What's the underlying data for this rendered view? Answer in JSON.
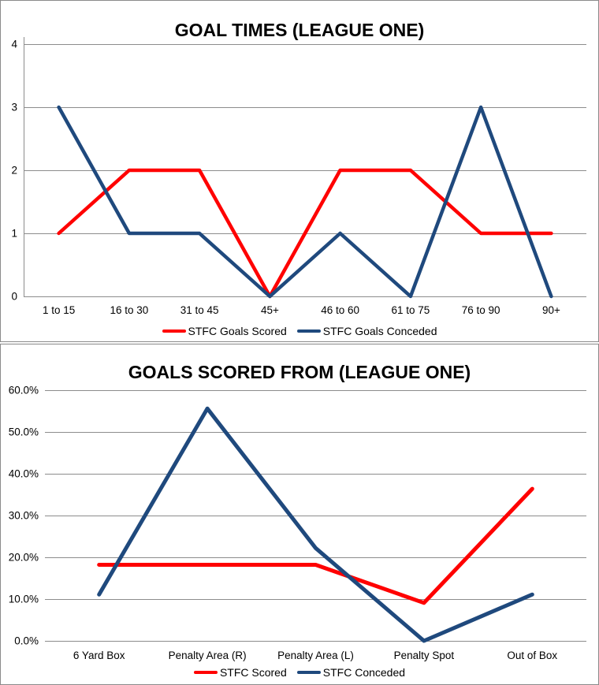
{
  "chart_data": [
    {
      "type": "line",
      "title": "GOAL TIMES (LEAGUE ONE)",
      "categories": [
        "1 to 15",
        "16 to 30",
        "31 to 45",
        "45+",
        "46 to 60",
        "61 to 75",
        "76 to 90",
        "90+"
      ],
      "series": [
        {
          "name": "STFC Goals Scored",
          "color": "#FF0000",
          "values": [
            1,
            2,
            2,
            0,
            2,
            2,
            1,
            1
          ]
        },
        {
          "name": "STFC Goals Conceded",
          "color": "#1F497D",
          "values": [
            3,
            1,
            1,
            0,
            1,
            0,
            3,
            0
          ]
        }
      ],
      "ylim": [
        0,
        4
      ],
      "yticks": [
        0,
        1,
        2,
        3,
        4
      ],
      "ytick_labels": [
        "0",
        "1",
        "2",
        "3",
        "4"
      ],
      "xlabel": "",
      "ylabel": "",
      "grid": "horizontal",
      "gridline_color": "#8C8C8C",
      "legend_position": "bottom"
    },
    {
      "type": "line",
      "title": "GOALS SCORED FROM (LEAGUE ONE)",
      "categories": [
        "6 Yard Box",
        "Penalty Area (R)",
        "Penalty Area (L)",
        "Penalty Spot",
        "Out of Box"
      ],
      "series": [
        {
          "name": "STFC Scored",
          "color": "#FF0000",
          "values": [
            18.2,
            18.2,
            18.2,
            9.1,
            36.4
          ]
        },
        {
          "name": "STFC Conceded",
          "color": "#1F497D",
          "values": [
            11.1,
            55.6,
            22.2,
            0.0,
            11.1
          ]
        }
      ],
      "ylim": [
        0,
        60
      ],
      "yticks": [
        0,
        10,
        20,
        30,
        40,
        50,
        60
      ],
      "ytick_labels": [
        "0.0%",
        "10.0%",
        "20.0%",
        "30.0%",
        "40.0%",
        "50.0%",
        "60.0%"
      ],
      "xlabel": "",
      "ylabel": "",
      "grid": "horizontal",
      "gridline_color": "#8C8C8C",
      "legend_position": "bottom"
    }
  ]
}
